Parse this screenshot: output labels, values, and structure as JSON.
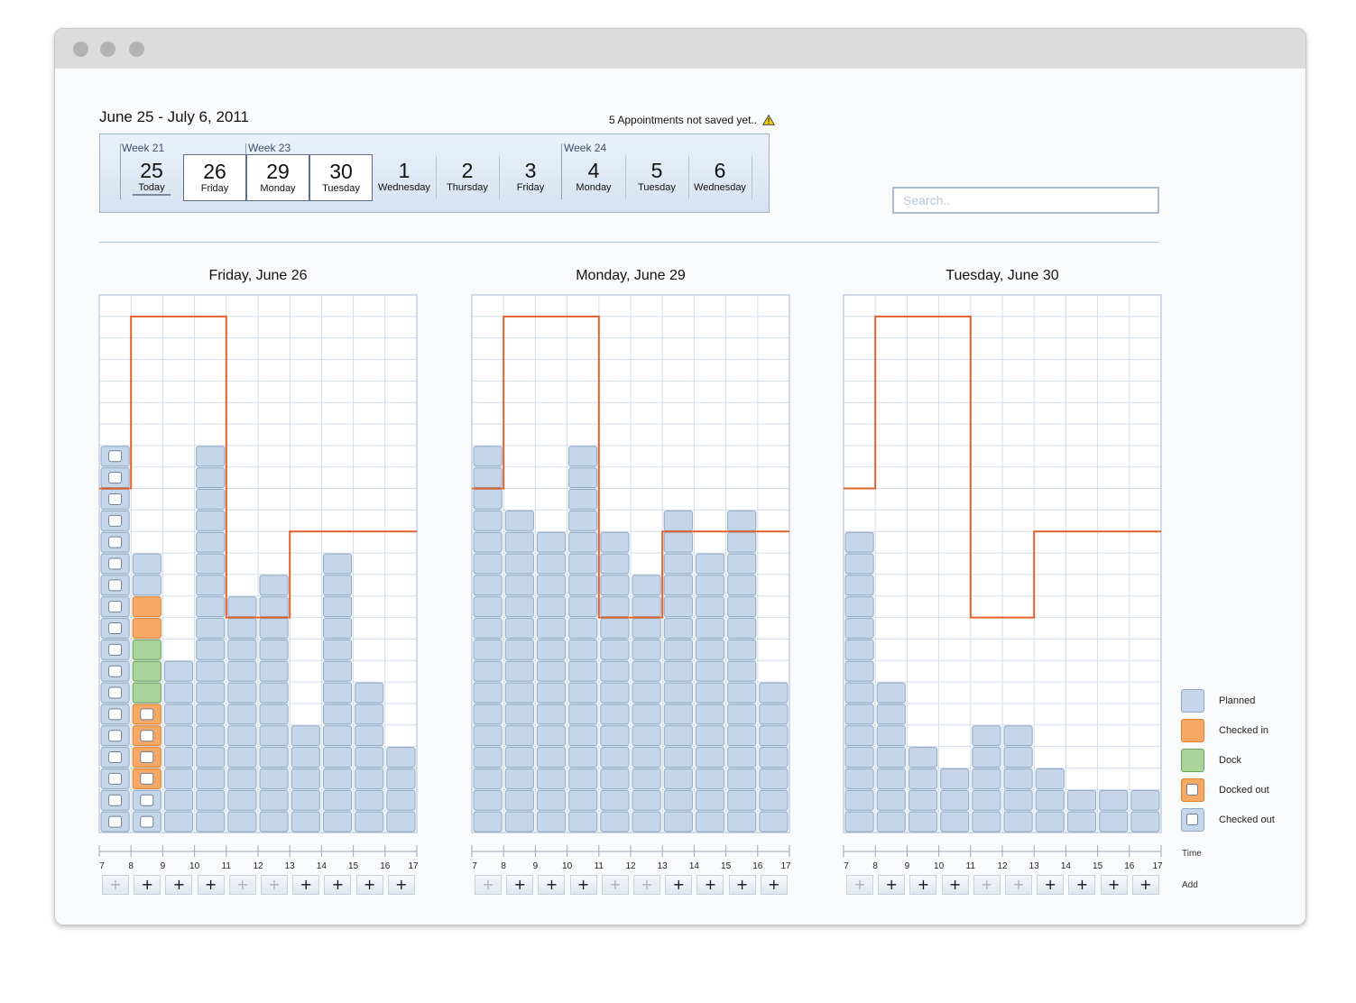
{
  "header": {
    "date_range": "June 25 - July 6, 2011",
    "notice": "5 Appointments not saved yet..",
    "notice_icon": "warning-icon"
  },
  "week_bar": {
    "weeks": [
      "Week 21",
      "Week 23",
      "Week 24"
    ],
    "days": [
      {
        "num": "25",
        "name": "Today",
        "selected": false,
        "is_today": true
      },
      {
        "num": "26",
        "name": "Friday",
        "selected": true
      },
      {
        "num": "29",
        "name": "Monday",
        "selected": true
      },
      {
        "num": "30",
        "name": "Tuesday",
        "selected": true
      },
      {
        "num": "1",
        "name": "Wednesday",
        "selected": false
      },
      {
        "num": "2",
        "name": "Thursday",
        "selected": false
      },
      {
        "num": "3",
        "name": "Friday",
        "selected": false
      },
      {
        "num": "4",
        "name": "Monday",
        "selected": false
      },
      {
        "num": "5",
        "name": "Tuesday",
        "selected": false
      },
      {
        "num": "6",
        "name": "Wednesday",
        "selected": false
      }
    ]
  },
  "search": {
    "placeholder": "Search..",
    "value": ""
  },
  "panels": [
    {
      "title": "Friday, June 26",
      "slots": [
        [
          "C",
          "C",
          "C",
          "C",
          "C",
          "C",
          "C",
          "C",
          "C",
          "C",
          "C",
          "C",
          "C",
          "C",
          "C",
          "C",
          "C",
          "C"
        ],
        [
          "C",
          "C",
          "DO",
          "DO",
          "DO",
          "DO",
          "D",
          "D",
          "D",
          "I",
          "I",
          "P",
          "P"
        ],
        [
          "P",
          "P",
          "P",
          "P",
          "P",
          "P",
          "P",
          "P"
        ],
        [
          "P",
          "P",
          "P",
          "P",
          "P",
          "P",
          "P",
          "P",
          "P",
          "P",
          "P",
          "P",
          "P",
          "P",
          "P",
          "P",
          "P",
          "P"
        ],
        [
          "P",
          "P",
          "P",
          "P",
          "P",
          "P",
          "P",
          "P",
          "P",
          "P",
          "P"
        ],
        [
          "P",
          "P",
          "P",
          "P",
          "P",
          "P",
          "P",
          "P",
          "P",
          "P",
          "P",
          "P"
        ],
        [
          "P",
          "P",
          "P",
          "P",
          "P"
        ],
        [
          "P",
          "P",
          "P",
          "P",
          "P",
          "P",
          "P",
          "P",
          "P",
          "P",
          "P",
          "P",
          "P"
        ],
        [
          "P",
          "P",
          "P",
          "P",
          "P",
          "P",
          "P"
        ],
        [
          "P",
          "P",
          "P",
          "P"
        ]
      ],
      "capacity": [
        16,
        24,
        24,
        24,
        10,
        10,
        14,
        14,
        14,
        14
      ],
      "add_enabled": [
        false,
        true,
        true,
        true,
        false,
        false,
        true,
        true,
        true,
        true
      ]
    },
    {
      "title": "Monday, June 29",
      "slots": [
        [
          "P",
          "P",
          "P",
          "P",
          "P",
          "P",
          "P",
          "P",
          "P",
          "P",
          "P",
          "P",
          "P",
          "P",
          "P",
          "P",
          "P",
          "P"
        ],
        [
          "P",
          "P",
          "P",
          "P",
          "P",
          "P",
          "P",
          "P",
          "P",
          "P",
          "P",
          "P",
          "P",
          "P",
          "P"
        ],
        [
          "P",
          "P",
          "P",
          "P",
          "P",
          "P",
          "P",
          "P",
          "P",
          "P",
          "P",
          "P",
          "P",
          "P"
        ],
        [
          "P",
          "P",
          "P",
          "P",
          "P",
          "P",
          "P",
          "P",
          "P",
          "P",
          "P",
          "P",
          "P",
          "P",
          "P",
          "P",
          "P",
          "P"
        ],
        [
          "P",
          "P",
          "P",
          "P",
          "P",
          "P",
          "P",
          "P",
          "P",
          "P",
          "P",
          "P",
          "P",
          "P"
        ],
        [
          "P",
          "P",
          "P",
          "P",
          "P",
          "P",
          "P",
          "P",
          "P",
          "P",
          "P",
          "P"
        ],
        [
          "P",
          "P",
          "P",
          "P",
          "P",
          "P",
          "P",
          "P",
          "P",
          "P",
          "P",
          "P",
          "P",
          "P",
          "P"
        ],
        [
          "P",
          "P",
          "P",
          "P",
          "P",
          "P",
          "P",
          "P",
          "P",
          "P",
          "P",
          "P",
          "P"
        ],
        [
          "P",
          "P",
          "P",
          "P",
          "P",
          "P",
          "P",
          "P",
          "P",
          "P",
          "P",
          "P",
          "P",
          "P",
          "P"
        ],
        [
          "P",
          "P",
          "P",
          "P",
          "P",
          "P",
          "P"
        ]
      ],
      "capacity": [
        16,
        24,
        24,
        24,
        10,
        10,
        14,
        14,
        14,
        14
      ],
      "add_enabled": [
        false,
        true,
        true,
        true,
        false,
        false,
        true,
        true,
        true,
        true
      ]
    },
    {
      "title": "Tuesday, June 30",
      "slots": [
        [
          "P",
          "P",
          "P",
          "P",
          "P",
          "P",
          "P",
          "P",
          "P",
          "P",
          "P",
          "P",
          "P",
          "P"
        ],
        [
          "P",
          "P",
          "P",
          "P",
          "P",
          "P",
          "P"
        ],
        [
          "P",
          "P",
          "P",
          "P"
        ],
        [
          "P",
          "P",
          "P"
        ],
        [
          "P",
          "P",
          "P",
          "P",
          "P"
        ],
        [
          "P",
          "P",
          "P",
          "P",
          "P"
        ],
        [
          "P",
          "P",
          "P"
        ],
        [
          "P",
          "P"
        ],
        [
          "P",
          "P"
        ],
        [
          "P",
          "P"
        ]
      ],
      "capacity": [
        16,
        24,
        24,
        24,
        10,
        10,
        14,
        14,
        14,
        14
      ],
      "add_enabled": [
        false,
        true,
        true,
        true,
        false,
        false,
        true,
        true,
        true,
        true
      ]
    }
  ],
  "axis_ticks": [
    "7",
    "8",
    "9",
    "10",
    "11",
    "12",
    "13",
    "14",
    "15",
    "16",
    "17"
  ],
  "add_symbol": "+",
  "legend": {
    "items": [
      {
        "key": "P",
        "label": "Planned",
        "fill": "#c5d6ea",
        "stroke": "#8fa8c6",
        "marker": false
      },
      {
        "key": "I",
        "label": "Checked in",
        "fill": "#f7a865",
        "stroke": "#e07f2c",
        "marker": false
      },
      {
        "key": "D",
        "label": "Dock",
        "fill": "#a9d39b",
        "stroke": "#6aa25a",
        "marker": false
      },
      {
        "key": "DO",
        "label": "Docked out",
        "fill": "#f7a865",
        "stroke": "#e07f2c",
        "marker": true
      },
      {
        "key": "C",
        "label": "Checked out",
        "fill": "#c5d6ea",
        "stroke": "#8fa8c6",
        "marker": true
      }
    ],
    "time_label": "Time",
    "add_label": "Add"
  },
  "colors": {
    "capacity_line": "#e2612a",
    "grid": "#d3deea",
    "grid_border": "#a9bbcf"
  }
}
